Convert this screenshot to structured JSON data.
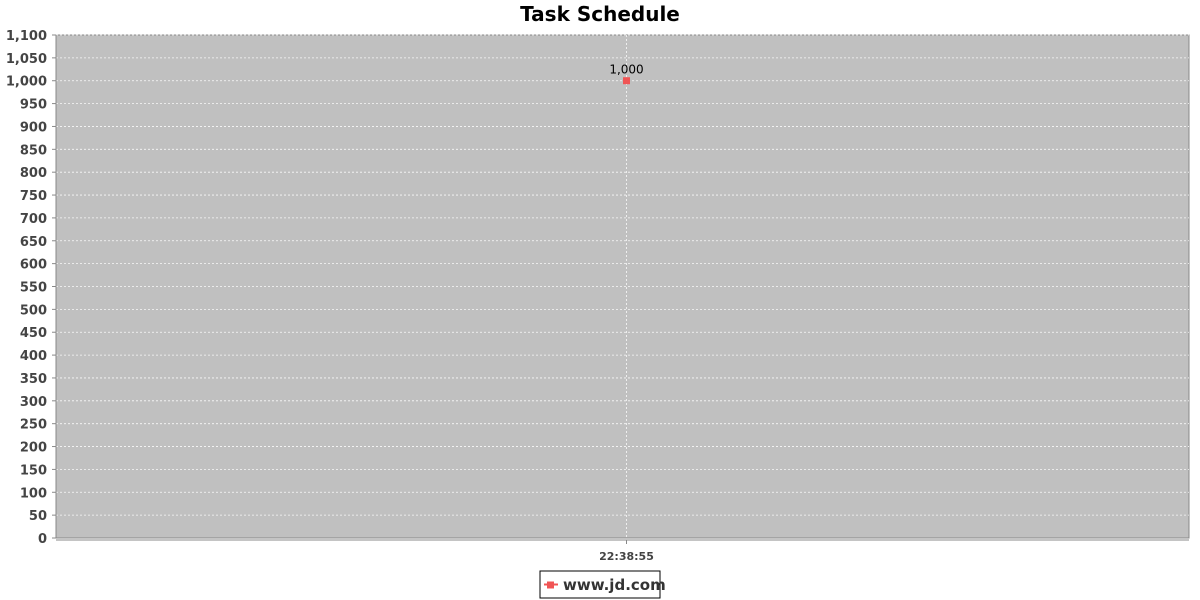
{
  "chart_data": {
    "type": "line",
    "title": "Task Schedule",
    "xlabel": "",
    "ylabel": "",
    "categories": [
      "22:38:55"
    ],
    "series": [
      {
        "name": "www.jd.com",
        "values": [
          1000
        ],
        "data_labels": [
          "1,000"
        ],
        "color": "#f05454"
      }
    ],
    "ylim": [
      0,
      1100
    ],
    "y_tick_step": 50,
    "y_tick_labels": [
      "0",
      "50",
      "100",
      "150",
      "200",
      "250",
      "300",
      "350",
      "400",
      "450",
      "500",
      "550",
      "600",
      "650",
      "700",
      "750",
      "800",
      "850",
      "900",
      "950",
      "1,000",
      "1,050",
      "1,100"
    ],
    "grid": true,
    "legend_position": "bottom-center",
    "plot_background": "#c0c0c0",
    "gridline_color": "#ffffff"
  }
}
